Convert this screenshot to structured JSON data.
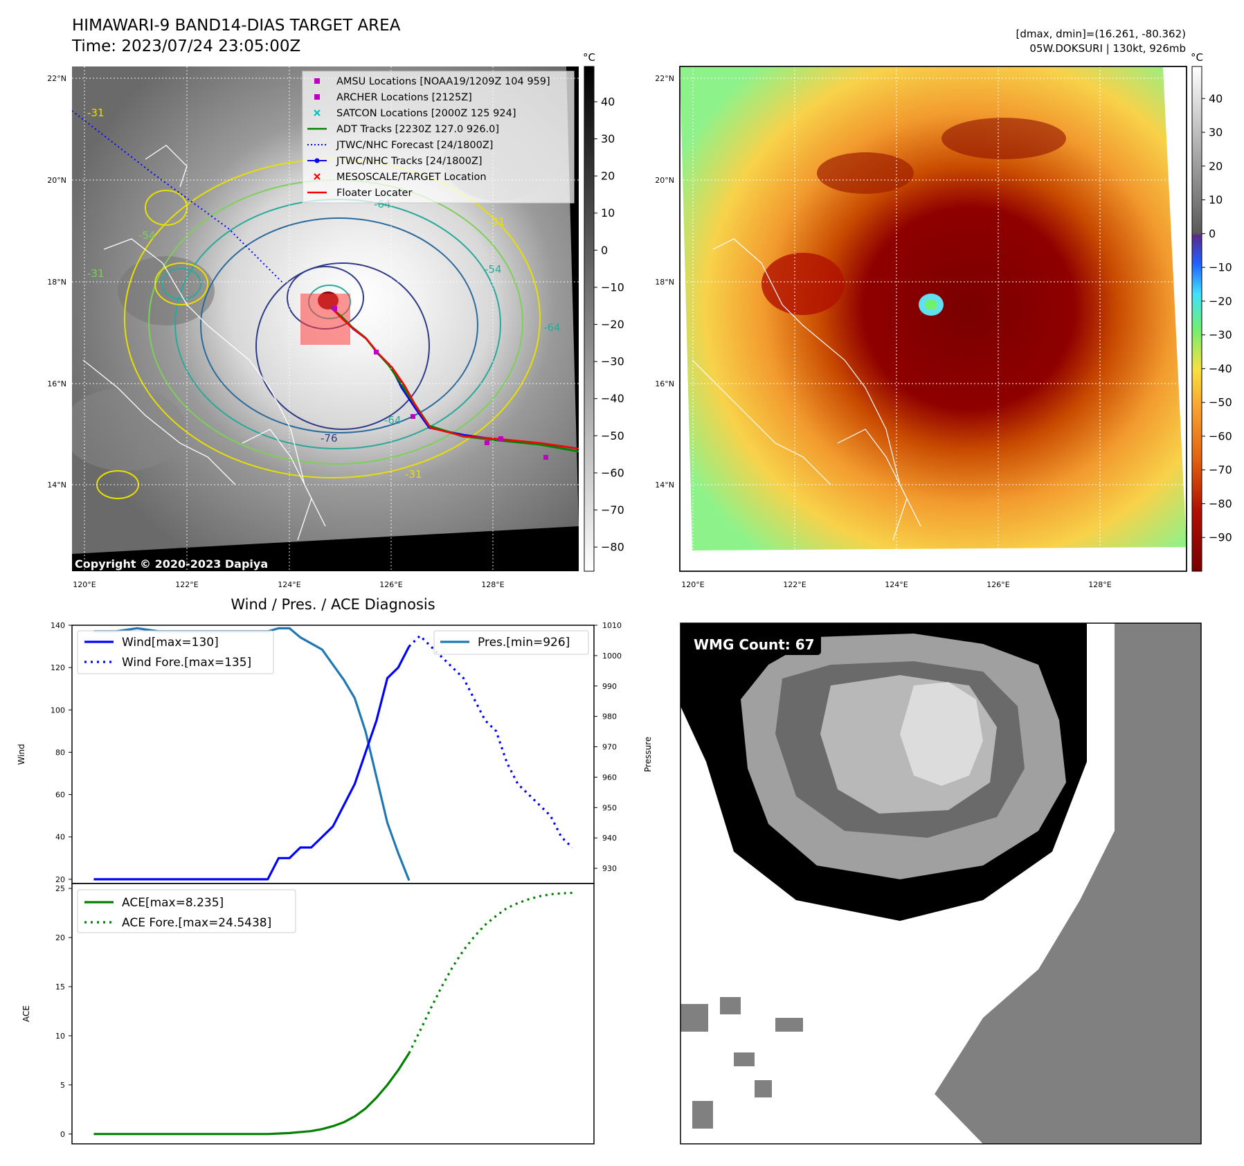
{
  "header": {
    "title": "HIMAWARI-9 BAND14-DIAS TARGET AREA",
    "time": "Time: 2023/07/24 23:05:00Z",
    "dmax_dmin": "[dmax, dmin]=(16.261, -80.362)",
    "storm_info": "05W.DOKSURI | 130kt, 926mb"
  },
  "colors": {
    "wind": "#0000ff",
    "pres": "#1f77b4",
    "ace": "#008000",
    "track_red": "#ff0000",
    "amsu": "#c000c0",
    "satcon": "#00c0c0"
  },
  "map_left": {
    "unit": "°C",
    "lat_labels": [
      "22°N",
      "20°N",
      "18°N",
      "16°N",
      "14°N"
    ],
    "lon_labels": [
      "120°E",
      "122°E",
      "124°E",
      "126°E",
      "128°E"
    ],
    "colorbar_ticks": [
      "40",
      "30",
      "20",
      "10",
      "0",
      "−10",
      "−20",
      "−30",
      "−40",
      "−50",
      "−60",
      "−70",
      "−80"
    ],
    "contour_labels": [
      "-31",
      "-31",
      "-54",
      "-31",
      "-64",
      "-76",
      "-64",
      "-31",
      "-54",
      "-64"
    ],
    "copyright": "Copyright © 2020-2023 Dapiya",
    "legend": [
      {
        "label": "AMSU Locations [NOAA19/1209Z 104 959]",
        "style": "square",
        "color": "#c000c0",
        "icon": "square-marker"
      },
      {
        "label": "ARCHER Locations [2125Z]",
        "style": "square",
        "color": "#c000c0",
        "icon": "square-marker"
      },
      {
        "label": "SATCON Locations [2000Z 125 924]",
        "style": "x",
        "color": "#00c0c0",
        "icon": "x-marker"
      },
      {
        "label": "ADT Tracks [2230Z 127.0 926.0]",
        "style": "line",
        "color": "#008000",
        "icon": "line"
      },
      {
        "label": "JTWC/NHC Forecast [24/1800Z]",
        "style": "dotted",
        "color": "#0000ff",
        "icon": "dotted-line"
      },
      {
        "label": "JTWC/NHC Tracks [24/1800Z]",
        "style": "line-dot",
        "color": "#0000ff",
        "icon": "line-dot"
      },
      {
        "label": "MESOSCALE/TARGET Location",
        "style": "x",
        "color": "#ff0000",
        "icon": "x-marker"
      },
      {
        "label": "Floater Locater",
        "style": "line",
        "color": "#ff0000",
        "icon": "line"
      }
    ]
  },
  "map_right": {
    "unit": "°C",
    "lat_labels": [
      "22°N",
      "20°N",
      "18°N",
      "16°N",
      "14°N"
    ],
    "lon_labels": [
      "120°E",
      "122°E",
      "124°E",
      "126°E",
      "128°E"
    ],
    "colorbar_ticks": [
      "40",
      "30",
      "20",
      "10",
      "0",
      "−10",
      "−20",
      "−30",
      "−40",
      "−50",
      "−60",
      "−70",
      "−80",
      "−90"
    ]
  },
  "diag": {
    "title": "Wind / Pres. / ACE Diagnosis",
    "wind_ylabel": "Wind",
    "pres_ylabel": "Pressure",
    "ace_ylabel": "ACE",
    "legend_wind": "Wind[max=130]",
    "legend_wind_fore": "Wind Fore.[max=135]",
    "legend_pres": "Pres.[min=926]",
    "legend_ace": "ACE[max=8.235]",
    "legend_ace_fore": "ACE Fore.[max=24.5438]"
  },
  "wmg": {
    "label": "WMG Count: 67"
  },
  "chart_data": [
    {
      "type": "line",
      "title": "Wind / Pres. / ACE Diagnosis",
      "ylabel": "Wind",
      "ylim": [
        18,
        140
      ],
      "yticks": [
        20,
        40,
        60,
        80,
        100,
        120,
        140
      ],
      "series": [
        {
          "name": "Wind[max=130]",
          "style": "solid",
          "x": [
            0,
            1,
            2,
            3,
            4,
            5,
            6,
            7,
            8,
            9,
            10,
            11,
            12,
            13,
            14,
            15,
            16,
            17,
            18,
            19,
            20,
            21,
            22,
            23,
            24,
            25,
            26,
            27,
            28,
            29
          ],
          "values": [
            20,
            20,
            20,
            20,
            20,
            20,
            20,
            20,
            20,
            20,
            20,
            20,
            20,
            20,
            20,
            20,
            20,
            30,
            30,
            35,
            35,
            40,
            45,
            55,
            65,
            80,
            95,
            115,
            120,
            130
          ]
        },
        {
          "name": "Wind Fore.[max=135]",
          "style": "dotted",
          "x": [
            29,
            30,
            31,
            32,
            33,
            34,
            35,
            36,
            37,
            38,
            39,
            40,
            41,
            42,
            43,
            44
          ],
          "values": [
            130,
            135,
            130,
            125,
            120,
            115,
            105,
            95,
            90,
            75,
            65,
            60,
            55,
            50,
            40,
            35
          ]
        }
      ]
    },
    {
      "type": "line",
      "ylabel": "Pressure",
      "ylim": [
        925,
        1010
      ],
      "yticks": [
        930,
        940,
        950,
        960,
        970,
        980,
        990,
        1000,
        1010
      ],
      "series": [
        {
          "name": "Pres.[min=926]",
          "style": "solid",
          "x": [
            0,
            2,
            4,
            6,
            8,
            10,
            12,
            14,
            16,
            17,
            18,
            19,
            20,
            21,
            22,
            23,
            24,
            25,
            26,
            27,
            28,
            29
          ],
          "values": [
            1008,
            1008,
            1009,
            1008,
            1008,
            1008,
            1008,
            1008,
            1008,
            1009,
            1009,
            1006,
            1004,
            1002,
            997,
            992,
            986,
            975,
            960,
            945,
            935,
            926
          ]
        }
      ]
    },
    {
      "type": "line",
      "ylabel": "ACE",
      "ylim": [
        -1,
        25.5
      ],
      "yticks": [
        0,
        5,
        10,
        15,
        20,
        25
      ],
      "series": [
        {
          "name": "ACE[max=8.235]",
          "style": "solid",
          "x": [
            0,
            4,
            8,
            12,
            16,
            18,
            20,
            21,
            22,
            23,
            24,
            25,
            26,
            27,
            28,
            29
          ],
          "values": [
            0,
            0,
            0,
            0,
            0,
            0.1,
            0.3,
            0.5,
            0.8,
            1.2,
            1.8,
            2.6,
            3.7,
            5.0,
            6.5,
            8.235
          ]
        },
        {
          "name": "ACE Fore.[max=24.5438]",
          "style": "dotted",
          "x": [
            29,
            30,
            31,
            32,
            33,
            34,
            35,
            36,
            37,
            38,
            39,
            40,
            41,
            42,
            43,
            44
          ],
          "values": [
            8.235,
            10.5,
            12.8,
            15.0,
            17.0,
            18.7,
            20.1,
            21.3,
            22.2,
            23.0,
            23.5,
            23.9,
            24.2,
            24.4,
            24.5,
            24.5438
          ]
        }
      ]
    }
  ]
}
